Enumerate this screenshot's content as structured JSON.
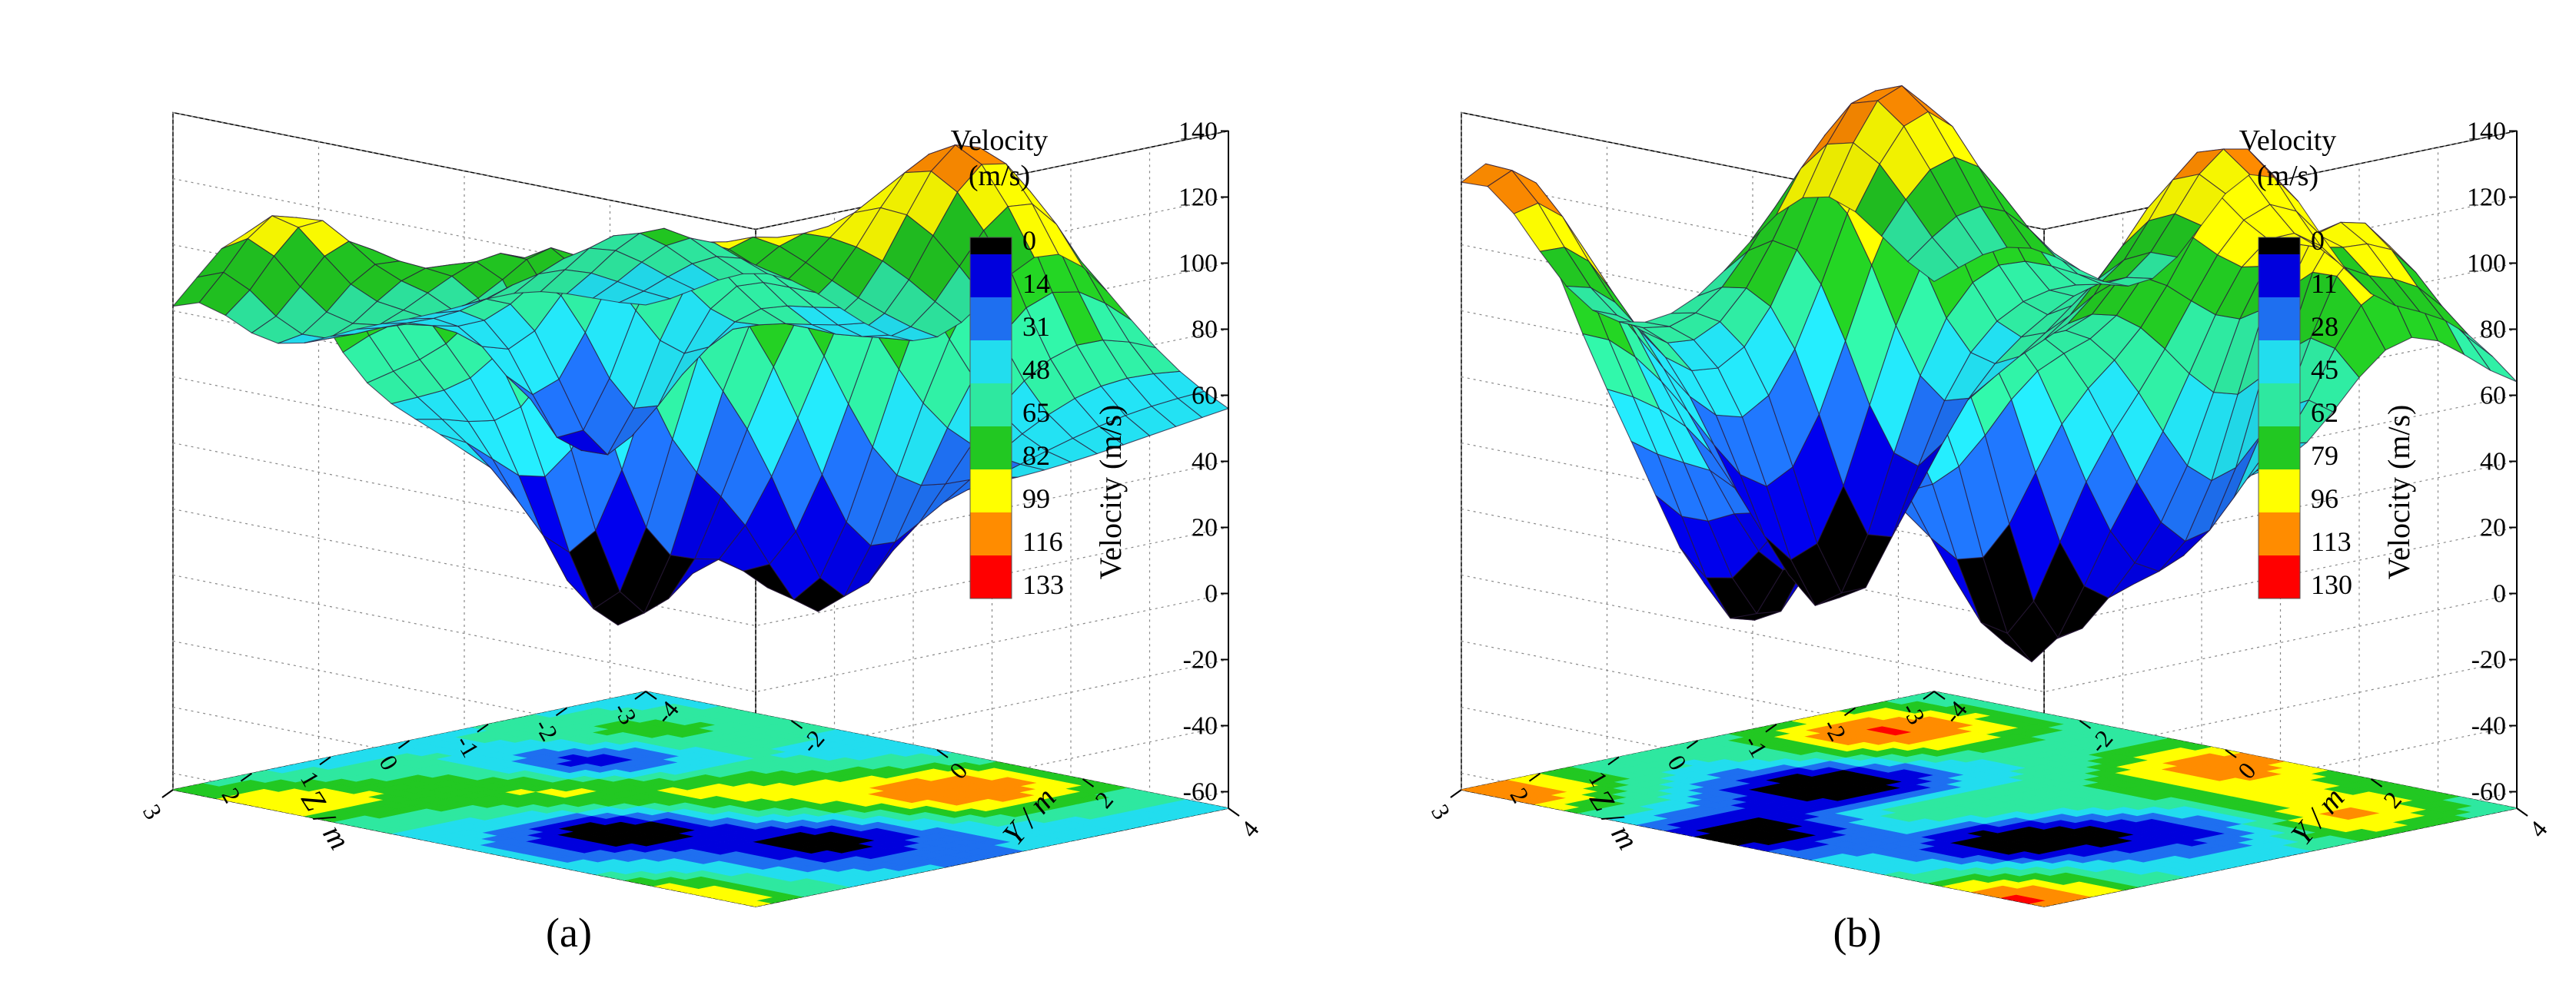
{
  "chart_data": [
    {
      "type": "surface3d",
      "panel_label": "(a)",
      "zlabel": "Velocity (m/s)",
      "xlabel": "Z / m",
      "ylabel": "Y / m",
      "z_ticks": [
        "140",
        "120",
        "100",
        "80",
        "60",
        "40",
        "20",
        "0",
        "-20",
        "-40",
        "-60"
      ],
      "zlim": [
        -65,
        140
      ],
      "x_ticks": [
        "3",
        "2",
        "1",
        "0",
        "-1",
        "-2",
        "-3"
      ],
      "y_ticks": [
        "4",
        "2",
        "0",
        "-2",
        "-4"
      ],
      "legend_title": [
        "Velocity",
        "(m/s)"
      ],
      "legend_levels": [
        "0",
        "14",
        "31",
        "48",
        "65",
        "82",
        "99",
        "116",
        "133"
      ],
      "level_colors": [
        "#000000",
        "#0000dd",
        "#1e6ff0",
        "#22ddee",
        "#2ee8a0",
        "#22c822",
        "#ffff00",
        "#ff8c00",
        "#ff0000"
      ],
      "peaks": [
        {
          "y": -3.0,
          "z": 2.5,
          "v": 135
        },
        {
          "y": 1.5,
          "z": -2.0,
          "v": 125
        },
        {
          "y": 3.2,
          "z": 3.5,
          "v": 128
        },
        {
          "y": -1.5,
          "z": 0.5,
          "v": 112
        },
        {
          "y": 0.0,
          "z": -0.5,
          "v": 95
        },
        {
          "y": -2.5,
          "z": -1.5,
          "v": 90
        }
      ],
      "valleys": [
        {
          "y": -2.0,
          "z": -0.5,
          "v": -18
        },
        {
          "y": 0.5,
          "z": 1.5,
          "v": -12
        },
        {
          "y": 2.2,
          "z": 0.5,
          "v": 5
        },
        {
          "y": -3.5,
          "z": 2.0,
          "v": 20
        }
      ]
    },
    {
      "type": "surface3d",
      "panel_label": "(b)",
      "zlabel": "Velocity (m/s)",
      "xlabel": "Z / m",
      "ylabel": "Y / m",
      "z_ticks": [
        "140",
        "120",
        "100",
        "80",
        "60",
        "40",
        "20",
        "0",
        "-20",
        "-40",
        "-60"
      ],
      "zlim": [
        -65,
        140
      ],
      "x_ticks": [
        "3",
        "2",
        "1",
        "0",
        "-1",
        "-2",
        "-3"
      ],
      "y_ticks": [
        "4",
        "2",
        "0",
        "-2",
        "-4"
      ],
      "legend_title": [
        "Velocity",
        "(m/s)"
      ],
      "legend_levels": [
        "0",
        "11",
        "28",
        "45",
        "62",
        "79",
        "96",
        "113",
        "130"
      ],
      "level_colors": [
        "#000000",
        "#0000dd",
        "#1e6ff0",
        "#22ddee",
        "#2ee8a0",
        "#22c822",
        "#ffff00",
        "#ff8c00",
        "#ff0000"
      ],
      "peaks": [
        {
          "y": -3.5,
          "z": 3.0,
          "v": 130
        },
        {
          "y": 3.5,
          "z": 3.0,
          "v": 130
        },
        {
          "y": 0.5,
          "z": -2.5,
          "v": 128
        },
        {
          "y": -3.0,
          "z": -1.5,
          "v": 125
        },
        {
          "y": 3.0,
          "z": -1.5,
          "v": 122
        },
        {
          "y": 0.0,
          "z": 0.5,
          "v": 88
        }
      ],
      "valleys": [
        {
          "y": -1.5,
          "z": 0.5,
          "v": -15
        },
        {
          "y": 1.5,
          "z": 1.0,
          "v": -18
        },
        {
          "y": -0.5,
          "z": 2.5,
          "v": -10
        },
        {
          "y": 2.5,
          "z": -0.5,
          "v": 0
        }
      ]
    }
  ]
}
